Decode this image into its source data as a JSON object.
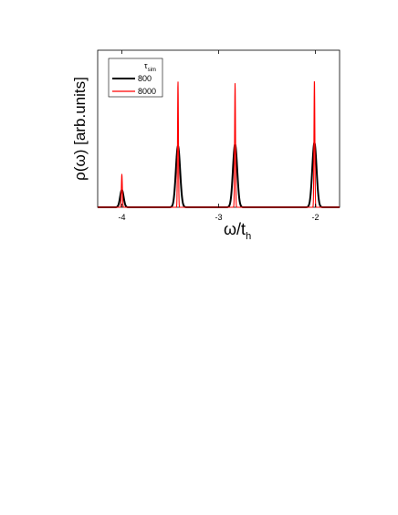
{
  "chart_data": {
    "type": "line",
    "xlabel_main": "ω/t",
    "xlabel_sub": "h",
    "ylabel": "ρ(ω) [arb.units]",
    "xlim": [
      -4.25,
      -1.75
    ],
    "ylim": [
      0,
      1.0
    ],
    "x_ticks": [
      -4,
      -3,
      -2
    ],
    "x_tick_labels": [
      "-4",
      "-3",
      "-2"
    ],
    "legend": {
      "title_main": "τ",
      "title_sub": "sim",
      "position": "top-left",
      "entries": [
        "800",
        "8000"
      ]
    },
    "series": [
      {
        "name": "800",
        "color": "#000000",
        "peaks": [
          {
            "center": -4.0,
            "height": 0.11,
            "width": 0.018
          },
          {
            "center": -3.42,
            "height": 0.39,
            "width": 0.022
          },
          {
            "center": -2.83,
            "height": 0.4,
            "width": 0.022
          },
          {
            "center": -2.01,
            "height": 0.41,
            "width": 0.022
          }
        ]
      },
      {
        "name": "8000",
        "color": "#ff0000",
        "peaks": [
          {
            "center": -4.0,
            "height": 0.21,
            "width": 0.005
          },
          {
            "center": -3.42,
            "height": 0.8,
            "width": 0.0045
          },
          {
            "center": -2.83,
            "height": 0.79,
            "width": 0.0045
          },
          {
            "center": -2.01,
            "height": 0.81,
            "width": 0.0045
          }
        ]
      }
    ]
  }
}
